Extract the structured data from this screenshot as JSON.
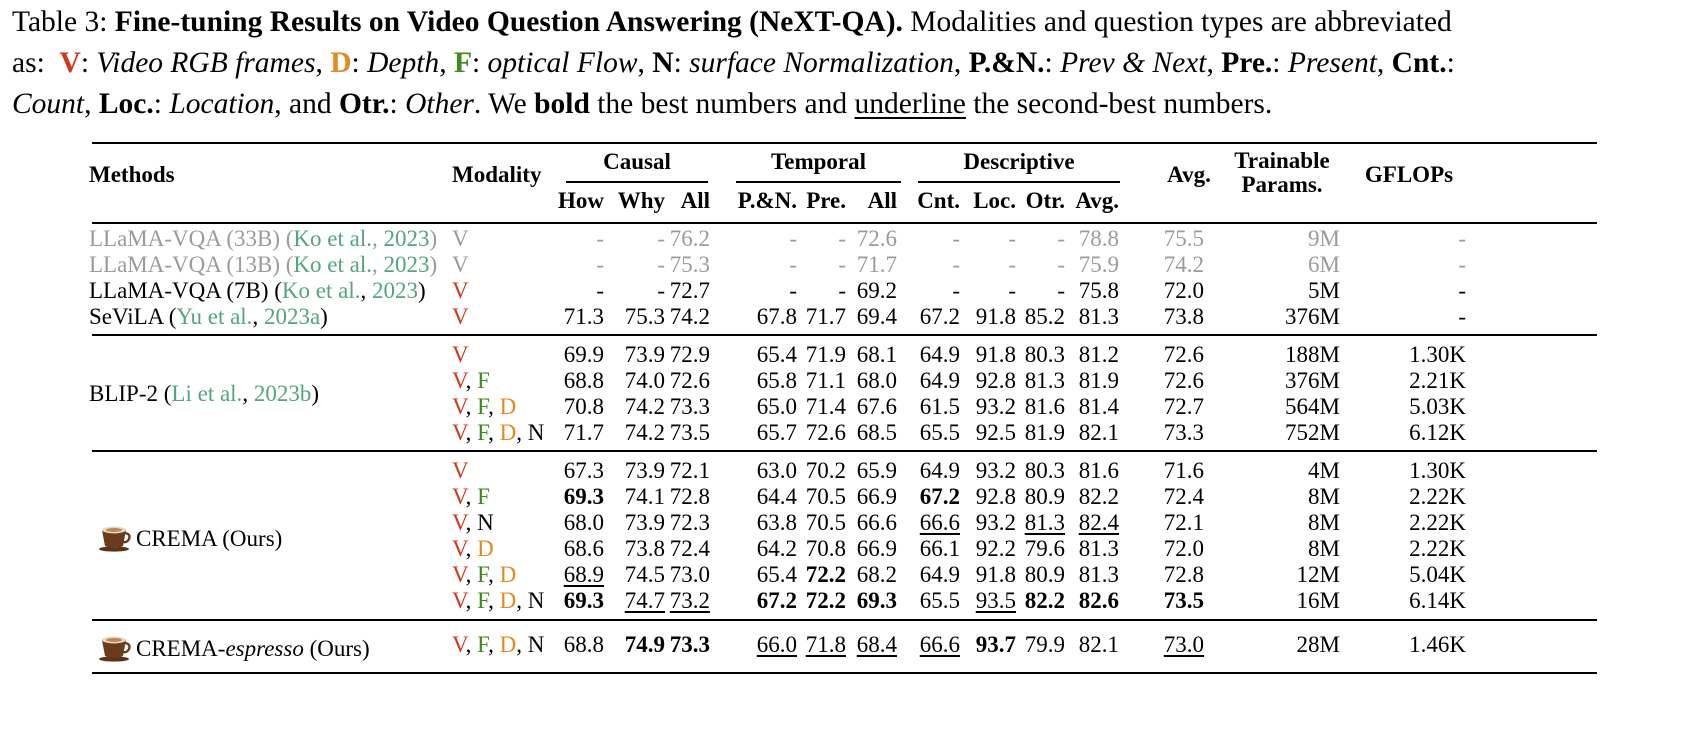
{
  "caption": {
    "table_label": "Table 3:",
    "title": "Fine-tuning Results on Video Question Answering (NeXT-QA).",
    "intro": "Modalities and question types are abbreviated",
    "as_label": "as:",
    "abbrevs": [
      {
        "key": "V",
        "desc": "Video RGB frames"
      },
      {
        "key": "D",
        "desc": "Depth"
      },
      {
        "key": "F",
        "desc": "optical Flow"
      },
      {
        "key": "N",
        "desc": "surface Normalization"
      },
      {
        "key": "P.&N.",
        "desc": "Prev & Next"
      },
      {
        "key": "Pre.",
        "desc": "Present"
      },
      {
        "key": "Cnt.",
        "desc": "Count"
      },
      {
        "key": "Loc.",
        "desc": "Location"
      },
      {
        "key": "Otr.",
        "desc": "Other"
      }
    ],
    "and_word": "and",
    "we_word": "We",
    "bold_word": "bold",
    "the_best_and": "the best numbers and",
    "underline_word": "underline",
    "tail": "the second-best numbers."
  },
  "headers": {
    "methods": "Methods",
    "modality": "Modality",
    "causal": "Causal",
    "temporal": "Temporal",
    "descriptive": "Descriptive",
    "avg": "Avg.",
    "trainable_l1": "Trainable",
    "trainable_l2": "Params.",
    "gflops": "GFLOPs",
    "sub": [
      "How",
      "Why",
      "All",
      "P.&N.",
      "Pre.",
      "All",
      "Cnt.",
      "Loc.",
      "Otr.",
      "Avg."
    ]
  },
  "methods": {
    "llama33": {
      "name": "LLaMA-VQA (33B) (",
      "cite_a": "Ko et al.",
      "sep": ", ",
      "cite_y": "2023",
      "close": ")"
    },
    "llama13": {
      "name": "LLaMA-VQA (13B) (",
      "cite_a": "Ko et al.",
      "sep": ", ",
      "cite_y": "2023",
      "close": ")"
    },
    "llama7": {
      "name": "LLaMA-VQA (7B) (",
      "cite_a": "Ko et al.",
      "sep": ", ",
      "cite_y": "2023",
      "close": ")"
    },
    "sevila": {
      "name": "SeViLA (",
      "cite_a": "Yu et al.",
      "sep": ", ",
      "cite_y": "2023a",
      "close": ")"
    },
    "blip": {
      "name": "BLIP-2 (",
      "cite_a": "Li et al.",
      "sep": ", ",
      "cite_y": "2023b",
      "close": ")"
    },
    "crema": {
      "name": "CREMA (Ours)",
      "icon": "coffee-cup-icon"
    },
    "espresso": {
      "name_a": "CREMA-",
      "name_i": "espresso",
      "name_b": " (Ours)",
      "icon": "coffee-cup-icon"
    }
  },
  "rows": [
    {
      "mod": [
        "V"
      ],
      "vals": [
        "-",
        "-",
        "76.2",
        "-",
        "-",
        "72.6",
        "-",
        "-",
        "-",
        "78.8",
        "75.5",
        "9M",
        "-"
      ],
      "gray": true
    },
    {
      "mod": [
        "V"
      ],
      "vals": [
        "-",
        "-",
        "75.3",
        "-",
        "-",
        "71.7",
        "-",
        "-",
        "-",
        "75.9",
        "74.2",
        "6M",
        "-"
      ],
      "gray": true
    },
    {
      "mod": [
        "V"
      ],
      "vals": [
        "-",
        "-",
        "72.7",
        "-",
        "-",
        "69.2",
        "-",
        "-",
        "-",
        "75.8",
        "72.0",
        "5M",
        "-"
      ]
    },
    {
      "mod": [
        "V"
      ],
      "vals": [
        "71.3",
        "75.3",
        "74.2",
        "67.8",
        "71.7",
        "69.4",
        "67.2",
        "91.8",
        "85.2",
        "81.3",
        "73.8",
        "376M",
        "-"
      ]
    },
    {
      "mod": [
        "V"
      ],
      "vals": [
        "69.9",
        "73.9",
        "72.9",
        "65.4",
        "71.9",
        "68.1",
        "64.9",
        "91.8",
        "80.3",
        "81.2",
        "72.6",
        "188M",
        "1.30K"
      ]
    },
    {
      "mod": [
        "V",
        "F"
      ],
      "vals": [
        "68.8",
        "74.0",
        "72.6",
        "65.8",
        "71.1",
        "68.0",
        "64.9",
        "92.8",
        "81.3",
        "81.9",
        "72.6",
        "376M",
        "2.21K"
      ]
    },
    {
      "mod": [
        "V",
        "F",
        "D"
      ],
      "vals": [
        "70.8",
        "74.2",
        "73.3",
        "65.0",
        "71.4",
        "67.6",
        "61.5",
        "93.2",
        "81.6",
        "81.4",
        "72.7",
        "564M",
        "5.03K"
      ]
    },
    {
      "mod": [
        "V",
        "F",
        "D",
        "N"
      ],
      "vals": [
        "71.7",
        "74.2",
        "73.5",
        "65.7",
        "72.6",
        "68.5",
        "65.5",
        "92.5",
        "81.9",
        "82.1",
        "73.3",
        "752M",
        "6.12K"
      ]
    },
    {
      "mod": [
        "V"
      ],
      "vals": [
        "67.3",
        "73.9",
        "72.1",
        "63.0",
        "70.2",
        "65.9",
        "64.9",
        "93.2",
        "80.3",
        "81.6",
        "71.6",
        "4M",
        "1.30K"
      ]
    },
    {
      "mod": [
        "V",
        "F"
      ],
      "vals": [
        "69.3",
        "74.1",
        "72.8",
        "64.4",
        "70.5",
        "66.9",
        "67.2",
        "92.8",
        "80.9",
        "82.2",
        "72.4",
        "8M",
        "2.22K"
      ],
      "bold": [
        0,
        6
      ]
    },
    {
      "mod": [
        "V",
        "N"
      ],
      "vals": [
        "68.0",
        "73.9",
        "72.3",
        "63.8",
        "70.5",
        "66.6",
        "66.6",
        "93.2",
        "81.3",
        "82.4",
        "72.1",
        "8M",
        "2.22K"
      ],
      "under": [
        6,
        8,
        9
      ]
    },
    {
      "mod": [
        "V",
        "D"
      ],
      "vals": [
        "68.6",
        "73.8",
        "72.4",
        "64.2",
        "70.8",
        "66.9",
        "66.1",
        "92.2",
        "79.6",
        "81.3",
        "72.0",
        "8M",
        "2.22K"
      ]
    },
    {
      "mod": [
        "V",
        "F",
        "D"
      ],
      "vals": [
        "68.9",
        "74.5",
        "73.0",
        "65.4",
        "72.2",
        "68.2",
        "64.9",
        "91.8",
        "80.9",
        "81.3",
        "72.8",
        "12M",
        "5.04K"
      ],
      "bold": [
        4
      ],
      "under": [
        0
      ]
    },
    {
      "mod": [
        "V",
        "F",
        "D",
        "N"
      ],
      "vals": [
        "69.3",
        "74.7",
        "73.2",
        "67.2",
        "72.2",
        "69.3",
        "65.5",
        "93.5",
        "82.2",
        "82.6",
        "73.5",
        "16M",
        "6.14K"
      ],
      "bold": [
        0,
        3,
        4,
        5,
        8,
        9,
        10
      ],
      "under": [
        1,
        2,
        7
      ]
    },
    {
      "mod": [
        "V",
        "F",
        "D",
        "N"
      ],
      "vals": [
        "68.8",
        "74.9",
        "73.3",
        "66.0",
        "71.8",
        "68.4",
        "66.6",
        "93.7",
        "79.9",
        "82.1",
        "73.0",
        "28M",
        "1.46K"
      ],
      "bold": [
        1,
        2,
        7
      ],
      "under": [
        3,
        4,
        5,
        6,
        10
      ]
    }
  ]
}
